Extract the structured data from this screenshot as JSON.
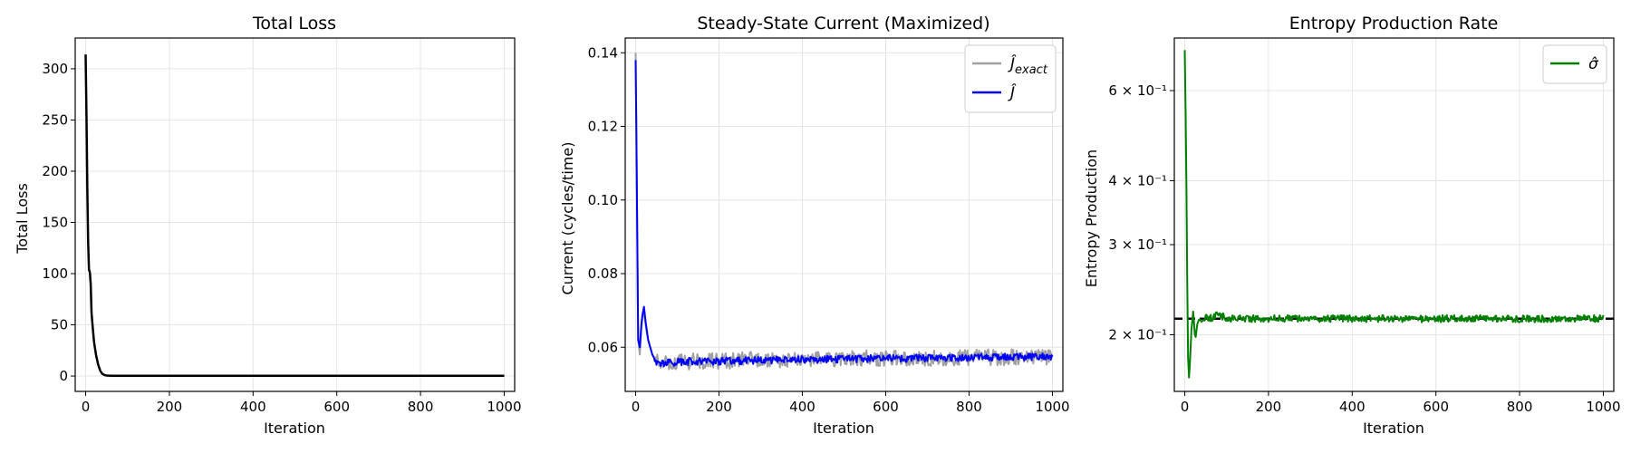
{
  "chart_data": [
    {
      "type": "line",
      "title": "Total Loss",
      "xlabel": "Iteration",
      "ylabel": "Total Loss",
      "xlim": [
        -25,
        1025
      ],
      "ylim": [
        -15,
        330
      ],
      "xticks": [
        0,
        200,
        400,
        600,
        800,
        1000
      ],
      "yticks": [
        0,
        50,
        100,
        150,
        200,
        250,
        300
      ],
      "grid": true,
      "series": [
        {
          "color": "#000000",
          "x": [
            0,
            2,
            4,
            6,
            8,
            10,
            12,
            14,
            16,
            18,
            20,
            25,
            30,
            35,
            40,
            45,
            50,
            60,
            80,
            100,
            200,
            300,
            400,
            500,
            600,
            700,
            800,
            900,
            1000
          ],
          "y": [
            314,
            250,
            180,
            130,
            104,
            101,
            90,
            62,
            52,
            42,
            33,
            20,
            11,
            5,
            2,
            1,
            0.5,
            0.3,
            0.3,
            0.3,
            0.3,
            0.3,
            0.3,
            0.3,
            0.3,
            0.3,
            0.3,
            0.3,
            0.3
          ]
        }
      ]
    },
    {
      "type": "line",
      "title": "Steady-State Current (Maximized)",
      "xlabel": "Iteration",
      "ylabel": "Current (cycles/time)",
      "xlim": [
        -25,
        1025
      ],
      "ylim": [
        0.048,
        0.144
      ],
      "xticks": [
        0,
        200,
        400,
        600,
        800,
        1000
      ],
      "yticks": [
        0.06,
        0.08,
        0.1,
        0.12,
        0.14
      ],
      "ytick_labels": [
        "0.06",
        "0.08",
        "0.10",
        "0.12",
        "0.14"
      ],
      "grid": true,
      "legend": "top-right",
      "series": [
        {
          "name": "Ĵexact",
          "label_base": "Ĵ",
          "label_sub": "exact",
          "color": "#a0a0a0",
          "x": [
            0,
            3,
            6,
            10,
            15,
            20,
            25,
            30,
            40,
            50,
            60,
            80,
            100,
            150,
            200,
            250,
            300,
            350,
            400,
            450,
            500,
            550,
            600,
            650,
            700,
            750,
            800,
            850,
            900,
            950,
            1000
          ],
          "y": [
            0.14,
            0.105,
            0.062,
            0.058,
            0.067,
            0.07,
            0.065,
            0.062,
            0.058,
            0.056,
            0.056,
            0.056,
            0.056,
            0.0562,
            0.0562,
            0.0565,
            0.0567,
            0.0565,
            0.0568,
            0.0567,
            0.0568,
            0.057,
            0.0568,
            0.057,
            0.057,
            0.057,
            0.0572,
            0.0572,
            0.0573,
            0.0574,
            0.0575
          ],
          "noise": 0.0022
        },
        {
          "name": "Ĵ",
          "label_base": "Ĵ",
          "label_sub": "",
          "color": "#0000ff",
          "x": [
            0,
            3,
            6,
            10,
            15,
            20,
            25,
            30,
            40,
            50,
            60,
            80,
            100,
            150,
            200,
            250,
            300,
            350,
            400,
            450,
            500,
            550,
            600,
            650,
            700,
            750,
            800,
            850,
            900,
            950,
            1000
          ],
          "y": [
            0.138,
            0.105,
            0.062,
            0.06,
            0.068,
            0.071,
            0.066,
            0.062,
            0.058,
            0.056,
            0.0555,
            0.0558,
            0.056,
            0.0562,
            0.0562,
            0.0563,
            0.0565,
            0.0565,
            0.0567,
            0.0567,
            0.0568,
            0.0569,
            0.057,
            0.057,
            0.0571,
            0.0572,
            0.0572,
            0.0573,
            0.0574,
            0.0574,
            0.0575
          ],
          "noise": 0.001
        }
      ]
    },
    {
      "type": "line",
      "title": "Entropy Production Rate",
      "xlabel": "Iteration",
      "ylabel": "Entropy Production",
      "xlim": [
        -25,
        1025
      ],
      "ylim": [
        0.155,
        0.76
      ],
      "yscale": "log",
      "xticks": [
        0,
        200,
        400,
        600,
        800,
        1000
      ],
      "yticks": [
        0.2,
        0.3,
        0.4,
        0.6
      ],
      "ytick_labels": [
        "2 × 10⁻¹",
        "3 × 10⁻¹",
        "4 × 10⁻¹",
        "6 × 10⁻¹"
      ],
      "grid": true,
      "legend": "top-right",
      "reference_line": {
        "y": 0.215,
        "style": "dashed",
        "color": "#000000"
      },
      "series": [
        {
          "name": "σ̂",
          "label_base": "σ̂",
          "label_sub": "",
          "color": "#008000",
          "x": [
            0,
            3,
            6,
            8,
            10,
            13,
            16,
            20,
            25,
            30,
            35,
            40,
            50,
            60,
            80,
            100,
            200,
            300,
            400,
            500,
            600,
            700,
            800,
            900,
            1000
          ],
          "y": [
            0.72,
            0.45,
            0.25,
            0.18,
            0.165,
            0.18,
            0.205,
            0.222,
            0.195,
            0.21,
            0.215,
            0.212,
            0.216,
            0.215,
            0.22,
            0.215,
            0.215,
            0.215,
            0.215,
            0.215,
            0.215,
            0.215,
            0.215,
            0.215,
            0.215
          ],
          "noise": 0.0035
        }
      ]
    }
  ]
}
